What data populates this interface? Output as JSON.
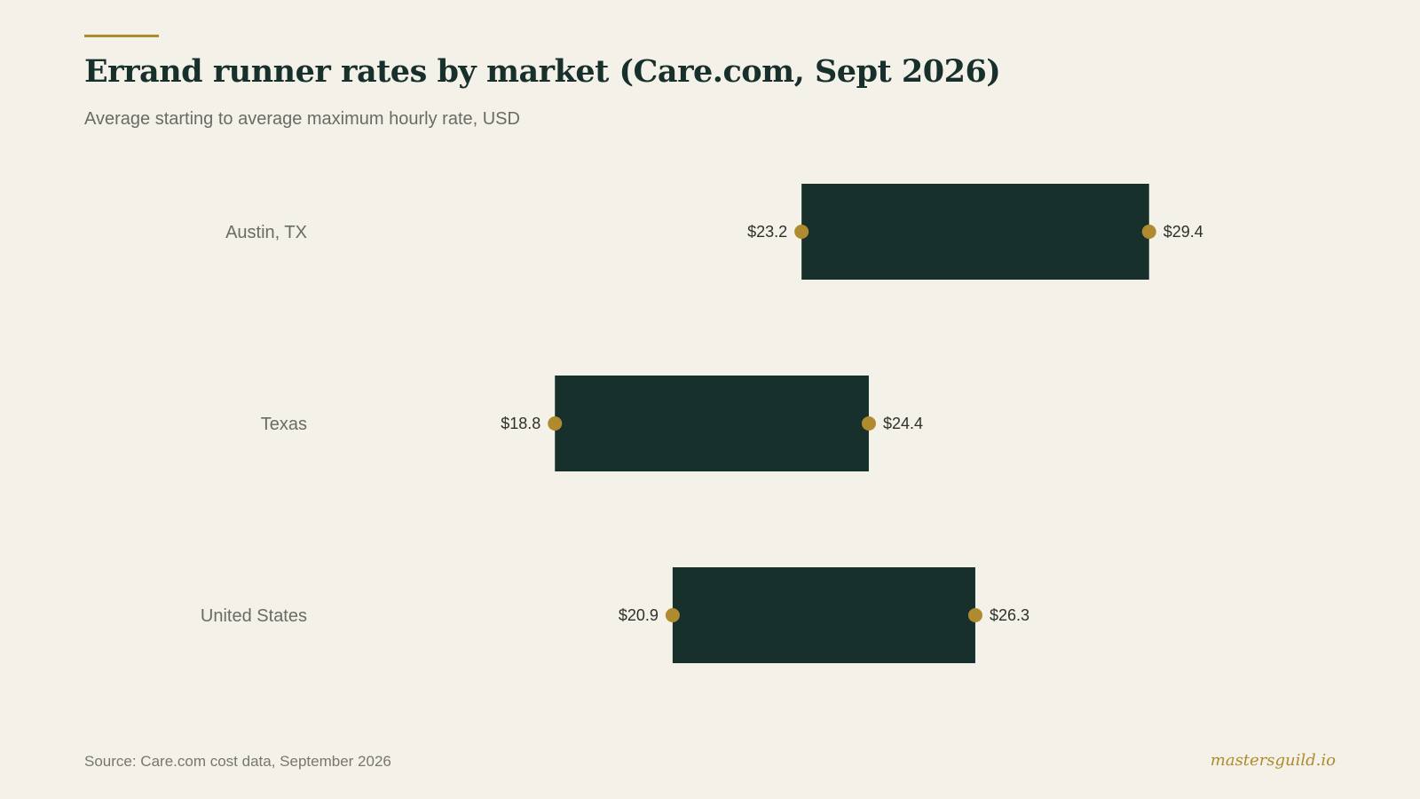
{
  "header": {
    "title": "Errand runner rates by market (Care.com, Sept 2026)",
    "subtitle": "Average starting to average maximum hourly rate, USD"
  },
  "footer": {
    "source": "Source: Care.com cost data, September 2026",
    "brand": "mastersguild.io"
  },
  "colors": {
    "background": "#f4f1e8",
    "bar": "#17302c",
    "accent": "#b08a2e",
    "title": "#17302c",
    "label": "#6b6b66",
    "value_label": "#2f2f2c"
  },
  "chart_data": {
    "type": "bar",
    "subtype": "floating-range",
    "title": "Errand runner rates by market (Care.com, Sept 2026)",
    "subtitle": "Average starting to average maximum hourly rate, USD",
    "categories": [
      "Austin, TX",
      "Texas",
      "United States"
    ],
    "series": [
      {
        "name": "Average starting rate",
        "values": [
          23.2,
          18.8,
          20.9
        ]
      },
      {
        "name": "Average maximum rate",
        "values": [
          29.4,
          24.4,
          26.3
        ]
      }
    ],
    "value_labels": {
      "start": [
        "$23.2",
        "$18.8",
        "$20.9"
      ],
      "end": [
        "$29.4",
        "$24.4",
        "$26.3"
      ]
    },
    "xlim": [
      14.6,
      33.6
    ],
    "grid": false,
    "legend": "none"
  }
}
